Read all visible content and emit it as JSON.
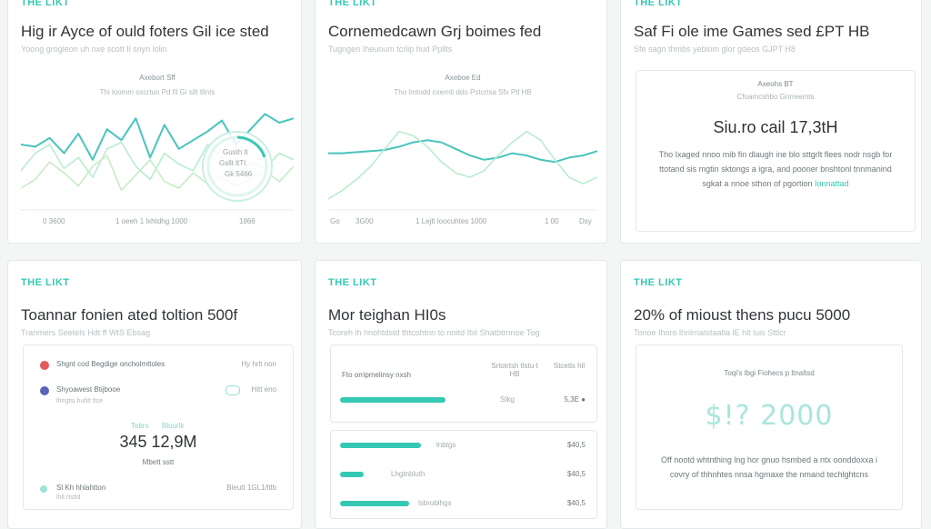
{
  "colors": {
    "accent": "#35c9b4",
    "accent_light": "#b9ecd0",
    "line_teal": "#48c4bd",
    "line_green": "#c7ecc4"
  },
  "cards": [
    {
      "brand": "THE LIKT",
      "meta": "",
      "title": "Hig ir Ayce of ould foters Gil ice sted",
      "subtitle": "Yoong grogleon uh nxe scott Il snyn lolin",
      "plot_title": "Axebort Sff",
      "plot_sub": "Thi loomm oxcrtun Pd fil Gi sllt tllnts",
      "badge_line1": "Gusth lt",
      "badge_line2": "Gsllt ltTt",
      "badge_line3": "Gk 5466",
      "x_labels": [
        "0 3600",
        "1 oeeh 1 lxhtdhg 1000",
        "1866"
      ]
    },
    {
      "brand": "THE LIKT",
      "meta": "",
      "title": "Cornemedcawn Grj boimes fed",
      "subtitle": "Tugngen Iheuoum tcrlip hud Ppllts",
      "plot_title": "Axeboe Ed",
      "plot_sub": "Tho lmtodd cxernti ddo Pstcrtsa Sfx Ptl HB",
      "x_labels": [
        "Go",
        "3G00",
        "1 Lejlt Ioocuhtes 1000",
        "1 00",
        "Dsy"
      ]
    },
    {
      "brand": "THE LIKT",
      "meta": "",
      "title": "Saf Fi ole ime Games sed £PT HB",
      "subtitle": "Sfe sagn thmbs yeblom glor gdeos GJPT H8",
      "panel_head": "Axeohs BT",
      "panel_sub": "Cfoamcshbo Gnrreemts",
      "big_text": "Siu.ro cail 17,3tH",
      "para": "Tho Ixaged nnoo mib fin dlaugh ine blo sttgrlt flees nodr nsgb for ttotand sis mgtin sktongs a igra, and pooner bnshtonl tnnmanind sgkat a nnoe sthon of pgortion",
      "para_link": "Ionnattad"
    },
    {
      "brand": "THE LIKT",
      "meta": "",
      "title": "Toannar fonien ated toltion 500f",
      "subtitle": "Tranmers Seetels Hdt ff WtS Ebsag",
      "rows": [
        {
          "label": "Shgnt cod Begdige oncholmttoles",
          "tag": "Hy hrlt non",
          "color": "#e55a5a"
        },
        {
          "label": "Shyoawest Btijbooe",
          "sub": "lhtrgtsi huhlt ttce",
          "tag": "Hitt eno",
          "color": "#5b63b8"
        }
      ],
      "mid_small1": "Tebrs",
      "mid_small2": "Bluurlk",
      "big_text": "345 12,9M",
      "caption": "Mbett sstt",
      "footer_label": "Sl Kh hhlahtton",
      "footer_sub": "lhlt rtsttd",
      "footer_tag": "Bleutt 1GL1/ltlb",
      "footer_color": "#9fe3d6"
    },
    {
      "brand": "THE LIKT",
      "meta": "",
      "title": "Mor teighan HI0s",
      "subtitle": "Tcoreh ih hnohtdstd thtcohtnn to nnitd Ibil Shatbtrnnoe Tog",
      "table_col": "Fto orripmelinsy nxsh",
      "table_h1": "Srtotrtsh tlstu t HB",
      "table_h2": "Stcetls hll",
      "main_bar": {
        "label": "Stkg",
        "value": "5,3E ●",
        "fraction": 0.68
      },
      "bars": [
        {
          "label": "lnbtgs",
          "value": "$40,5",
          "fraction": 0.34
        },
        {
          "label": "Lhgtnbluth",
          "value": "$40,5",
          "fraction": 0.1
        },
        {
          "label": "lsbroblhgs",
          "value": "$40,5",
          "fraction": 0.29
        }
      ]
    },
    {
      "brand": "THE LIKT",
      "meta": "",
      "title": "20% of mioust thens pucu 5000",
      "subtitle": "Tonoe Ihoro lhnlrnatstaatla lE hlt luis Sttlcr",
      "panel_head": "Toqi's lbgi Fiohecs p ltnaltsd",
      "big_digits": "$!? 2000",
      "para": "Off nootd whtnthing lng hor gnuo hsmbed a ntx oonddoxxa i covry of thhnhtes nnsa hgmaxe the nmand techlghtcns"
    }
  ],
  "chart_data": [
    {
      "type": "line",
      "title": "Axebort Sff",
      "series": [
        {
          "values": [
            60,
            58,
            66,
            52,
            70,
            46,
            74,
            64,
            84,
            48,
            78,
            56,
            64,
            72,
            82,
            60,
            74,
            88,
            80,
            84
          ]
        },
        {
          "values": [
            36,
            52,
            60,
            38,
            48,
            30,
            56,
            62,
            40,
            28,
            52,
            42,
            36,
            60,
            48,
            32,
            44,
            38,
            52,
            46
          ]
        },
        {
          "values": [
            20,
            28,
            44,
            34,
            22,
            40,
            50,
            18,
            32,
            46,
            26,
            20,
            34,
            24,
            30,
            22,
            28,
            36,
            26,
            40
          ]
        }
      ],
      "ylim": [
        0,
        100
      ]
    },
    {
      "type": "line",
      "title": "Axeboe Ed",
      "series": [
        {
          "values": [
            52,
            52,
            53,
            54,
            55,
            58,
            62,
            64,
            62,
            56,
            50,
            46,
            48,
            52,
            50,
            46,
            44,
            48,
            50,
            54
          ]
        },
        {
          "values": [
            10,
            18,
            28,
            40,
            56,
            72,
            68,
            58,
            44,
            34,
            30,
            36,
            50,
            62,
            72,
            64,
            46,
            30,
            24,
            30
          ]
        }
      ],
      "ylim": [
        0,
        100
      ]
    }
  ]
}
